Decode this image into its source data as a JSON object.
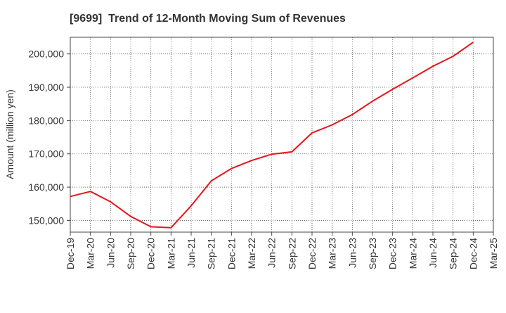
{
  "chart_data": {
    "type": "line",
    "title": "[9699]  Trend of 12-Month Moving Sum of Revenues",
    "xlabel": "",
    "ylabel": "Amount (million yen)",
    "ylim": [
      146500,
      205000
    ],
    "yticks": [
      150000,
      160000,
      170000,
      180000,
      190000,
      200000
    ],
    "ytick_labels": [
      "150,000",
      "160,000",
      "170,000",
      "180,000",
      "190,000",
      "200,000"
    ],
    "xtick_labels": [
      "Dec-19",
      "Mar-20",
      "Jun-20",
      "Sep-20",
      "Dec-20",
      "Mar-21",
      "Jun-21",
      "Sep-21",
      "Dec-21",
      "Mar-22",
      "Jun-22",
      "Sep-22",
      "Dec-22",
      "Mar-23",
      "Jun-23",
      "Sep-23",
      "Dec-23",
      "Mar-24",
      "Jun-24",
      "Sep-24",
      "Dec-24",
      "Mar-25"
    ],
    "x": [
      "Dec-19",
      "Mar-20",
      "Jun-20",
      "Sep-20",
      "Dec-20",
      "Mar-21",
      "Jun-21",
      "Sep-21",
      "Dec-21",
      "Mar-22",
      "Jun-22",
      "Sep-22",
      "Dec-22",
      "Mar-23",
      "Jun-23",
      "Sep-23",
      "Dec-23",
      "Mar-24",
      "Jun-24",
      "Sep-24",
      "Dec-24"
    ],
    "series": [
      {
        "values": [
          157200,
          158700,
          155600,
          151200,
          148100,
          147800,
          154400,
          161900,
          165600,
          168000,
          169900,
          170600,
          176300,
          178700,
          181800,
          185800,
          189400,
          192800,
          196300,
          199300,
          203500
        ],
        "color": "#e8141b"
      }
    ],
    "grid": true,
    "grid_style": "dotted",
    "legend": "none"
  }
}
